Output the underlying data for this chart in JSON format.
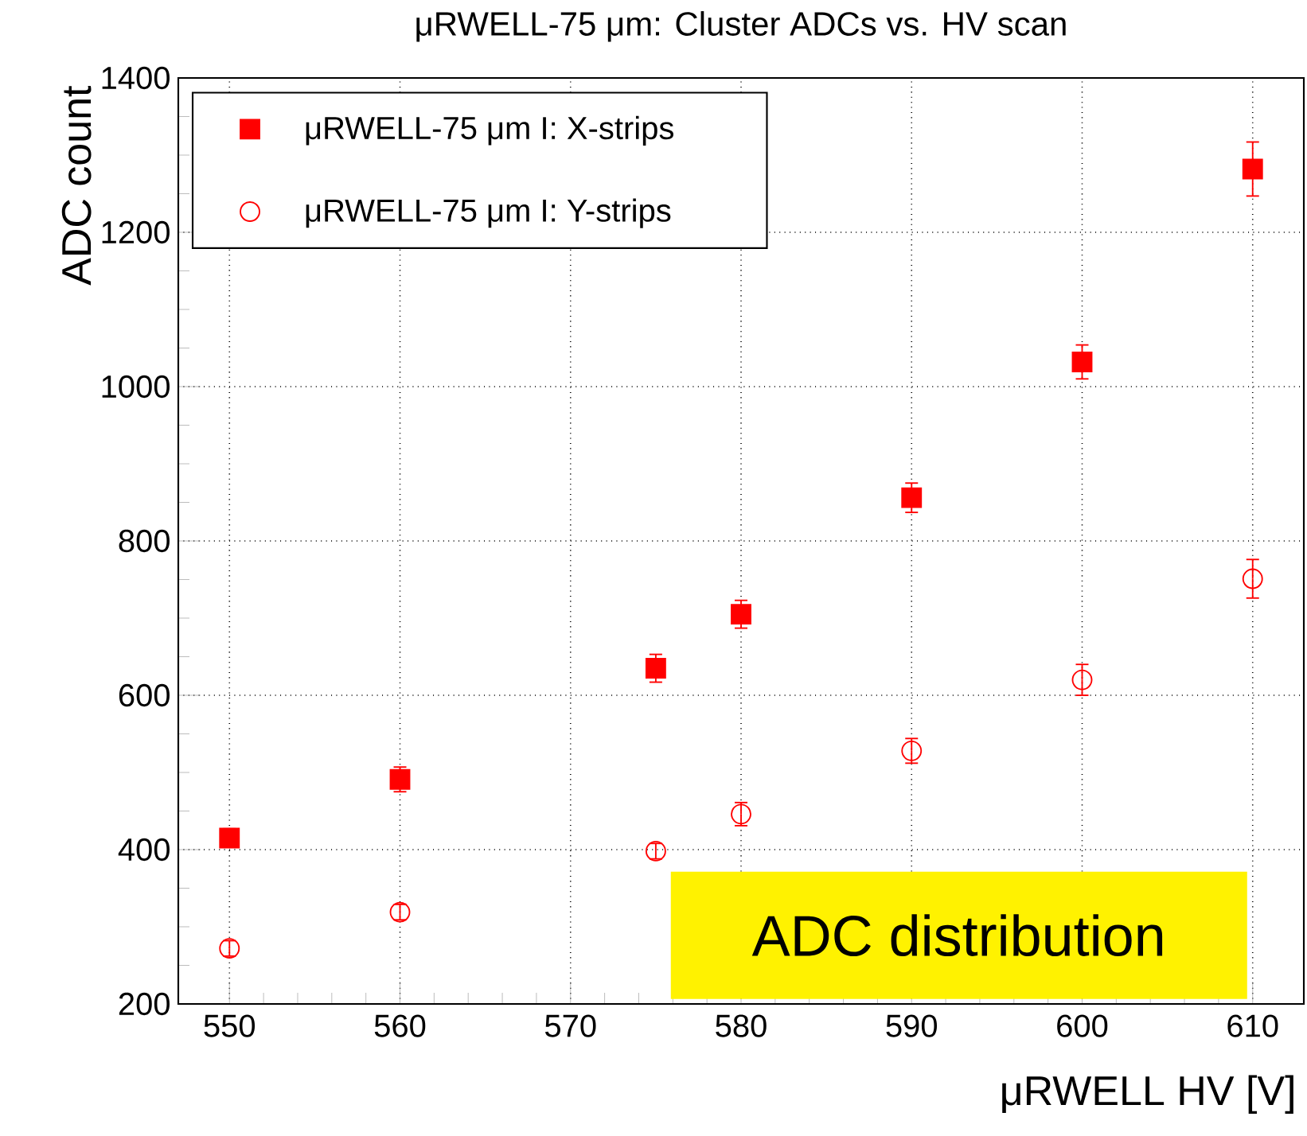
{
  "chart_data": {
    "type": "scatter",
    "title": "μRWELL-75 μm: Cluster ADCs vs. HV scan",
    "xlabel": "μRWELL HV [V]",
    "ylabel": "ADC count",
    "x": [
      550,
      560,
      575,
      580,
      590,
      600,
      610
    ],
    "series": [
      {
        "name": "μRWELL-75 μm I: X-strips",
        "color": "#ff0000",
        "marker": "square",
        "values": [
          415,
          491,
          635,
          705,
          856,
          1032,
          1282
        ],
        "errors": [
          12,
          16,
          18,
          18,
          19,
          22,
          35
        ]
      },
      {
        "name": "μRWELL-75 μm I: Y-strips",
        "color": "#ff0000",
        "marker": "circle",
        "values": [
          272,
          319,
          398,
          446,
          528,
          620,
          751
        ],
        "errors": [
          10,
          10,
          10,
          15,
          16,
          20,
          25
        ]
      }
    ],
    "xlim": [
      547,
      613
    ],
    "ylim": [
      200,
      1400
    ],
    "xticks": [
      550,
      560,
      570,
      580,
      590,
      600,
      610
    ],
    "yticks": [
      200,
      400,
      600,
      800,
      1000,
      1200,
      1400
    ],
    "grid": true,
    "legend": "top left",
    "annotations": [
      "ADC distribution"
    ]
  }
}
